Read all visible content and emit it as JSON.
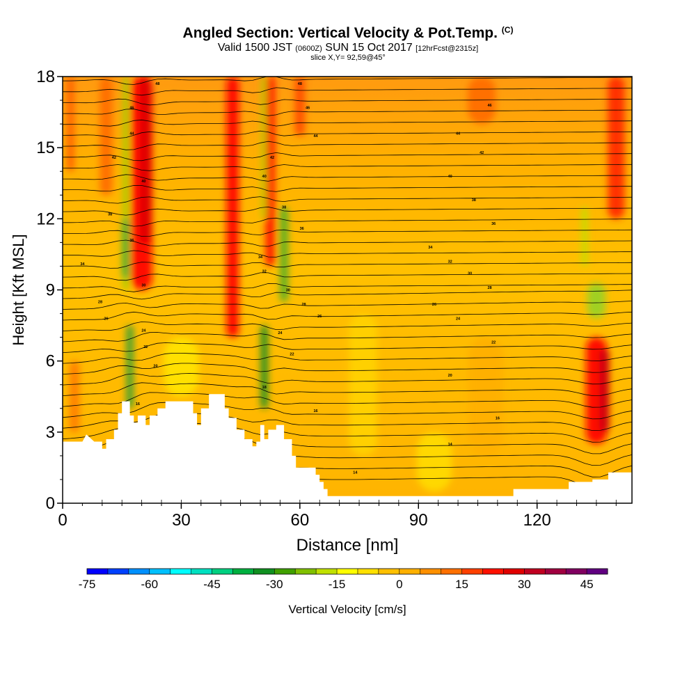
{
  "title": {
    "main": "Angled Section: Vertical Velocity & Pot.Temp.",
    "main_unit": "(C)",
    "valid_prefix": "Valid 1500 JST",
    "valid_utc": "(0600Z)",
    "valid_date": "SUN 15 Oct 2017",
    "forecast": "[12hrFcst@2315z]",
    "slice": "slice X,Y= 92,59@45°"
  },
  "chart_data": {
    "type": "heatmap",
    "xlabel": "Distance [nm]",
    "ylabel": "Height [Kft MSL]",
    "xlim": [
      0,
      144
    ],
    "ylim": [
      0,
      18
    ],
    "x_ticks": [
      "0",
      "30",
      "60",
      "90",
      "120"
    ],
    "x_tick_values": [
      0,
      30,
      60,
      90,
      120
    ],
    "y_ticks": [
      "0",
      "3",
      "6",
      "9",
      "12",
      "15",
      "18"
    ],
    "y_tick_values": [
      0,
      3,
      6,
      9,
      12,
      15,
      18
    ],
    "fill_variable": "Vertical Velocity",
    "contour_variable": "Pot.Temp.",
    "contour_labels": [
      {
        "x": 24,
        "y": 17.7,
        "text": "48"
      },
      {
        "x": 60,
        "y": 17.7,
        "text": "48"
      },
      {
        "x": 17.5,
        "y": 16.7,
        "text": "46"
      },
      {
        "x": 62,
        "y": 16.7,
        "text": "46"
      },
      {
        "x": 108,
        "y": 16.8,
        "text": "46"
      },
      {
        "x": 17.5,
        "y": 15.6,
        "text": "44"
      },
      {
        "x": 64,
        "y": 15.5,
        "text": "44"
      },
      {
        "x": 100,
        "y": 15.6,
        "text": "44"
      },
      {
        "x": 13,
        "y": 14.6,
        "text": "42"
      },
      {
        "x": 53,
        "y": 14.6,
        "text": "42"
      },
      {
        "x": 106,
        "y": 14.8,
        "text": "42"
      },
      {
        "x": 20.5,
        "y": 13.6,
        "text": "40"
      },
      {
        "x": 51,
        "y": 13.8,
        "text": "40"
      },
      {
        "x": 98,
        "y": 13.8,
        "text": "40"
      },
      {
        "x": 12,
        "y": 12.2,
        "text": "38"
      },
      {
        "x": 56,
        "y": 12.5,
        "text": "38"
      },
      {
        "x": 104,
        "y": 12.8,
        "text": "38"
      },
      {
        "x": 17.5,
        "y": 11.1,
        "text": "36"
      },
      {
        "x": 60.5,
        "y": 11.6,
        "text": "36"
      },
      {
        "x": 109,
        "y": 11.8,
        "text": "36"
      },
      {
        "x": 5,
        "y": 10.1,
        "text": "34"
      },
      {
        "x": 50,
        "y": 10.4,
        "text": "34"
      },
      {
        "x": 93,
        "y": 10.8,
        "text": "34"
      },
      {
        "x": 51,
        "y": 9.8,
        "text": "32"
      },
      {
        "x": 98,
        "y": 10.2,
        "text": "32"
      },
      {
        "x": 20.5,
        "y": 9.2,
        "text": "30"
      },
      {
        "x": 57,
        "y": 9.0,
        "text": "30"
      },
      {
        "x": 103,
        "y": 9.7,
        "text": "30"
      },
      {
        "x": 9.5,
        "y": 8.5,
        "text": "28"
      },
      {
        "x": 61,
        "y": 8.4,
        "text": "28"
      },
      {
        "x": 108,
        "y": 9.1,
        "text": "28"
      },
      {
        "x": 11,
        "y": 7.8,
        "text": "26"
      },
      {
        "x": 65,
        "y": 7.9,
        "text": "26"
      },
      {
        "x": 94,
        "y": 8.4,
        "text": "26"
      },
      {
        "x": 20.5,
        "y": 7.3,
        "text": "24"
      },
      {
        "x": 55,
        "y": 7.2,
        "text": "24"
      },
      {
        "x": 100,
        "y": 7.8,
        "text": "24"
      },
      {
        "x": 21,
        "y": 6.6,
        "text": "22"
      },
      {
        "x": 58,
        "y": 6.3,
        "text": "22"
      },
      {
        "x": 109,
        "y": 6.8,
        "text": "22"
      },
      {
        "x": 23.5,
        "y": 5.8,
        "text": "20"
      },
      {
        "x": 98,
        "y": 5.4,
        "text": "20"
      },
      {
        "x": 51,
        "y": 4.9,
        "text": "18"
      },
      {
        "x": 19,
        "y": 4.2,
        "text": "16"
      },
      {
        "x": 64,
        "y": 3.9,
        "text": "16"
      },
      {
        "x": 110,
        "y": 3.6,
        "text": "16"
      },
      {
        "x": 98,
        "y": 2.5,
        "text": "14"
      },
      {
        "x": 74,
        "y": 1.3,
        "text": "14"
      }
    ],
    "colorbar": {
      "label": "Vertical Velocity [cm/s]",
      "min": -75,
      "max": 50,
      "step": 5,
      "tick_labels": [
        "-75",
        "-60",
        "-45",
        "-30",
        "-15",
        "0",
        "15",
        "30",
        "45"
      ],
      "tick_values": [
        -75,
        -60,
        -45,
        -30,
        -15,
        0,
        15,
        30,
        45
      ],
      "colors": [
        "#0000ff",
        "#0040ff",
        "#0090ff",
        "#00c0ff",
        "#00ffff",
        "#00e0c0",
        "#00d080",
        "#00b040",
        "#109020",
        "#40a000",
        "#80c000",
        "#c0e000",
        "#ffff00",
        "#ffe000",
        "#ffc000",
        "#ffb000",
        "#ff9000",
        "#ff7000",
        "#ff4000",
        "#ff1000",
        "#e00000",
        "#c00020",
        "#a00040",
        "#800060",
        "#600080"
      ]
    }
  }
}
